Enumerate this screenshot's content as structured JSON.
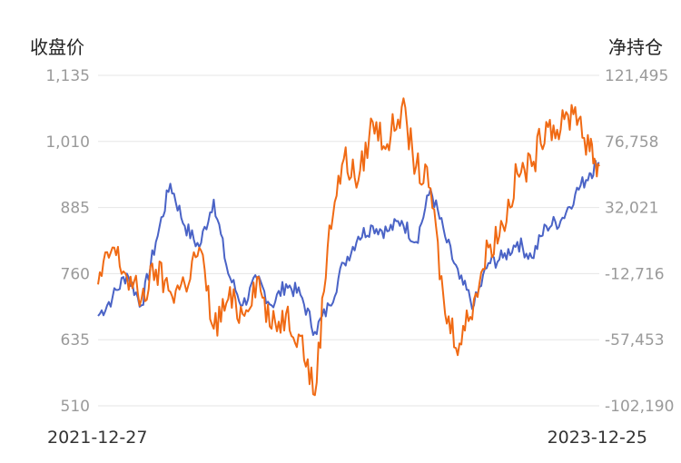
{
  "chart_data": {
    "type": "line",
    "left_axis_title": "收盘价",
    "right_axis_title": "净持仓",
    "x_start": "2021-12-27",
    "x_end": "2023-12-25",
    "left_ticks": [
      "1,135",
      "1,010",
      "885",
      "760",
      "635",
      "510"
    ],
    "right_ticks": [
      "121,495",
      "76,758",
      "32,021",
      "-12,716",
      "-57,453",
      "-102,190"
    ],
    "ylim_left": [
      510,
      1135
    ],
    "ylim_right": [
      -102190,
      121495
    ],
    "grid": true,
    "series": [
      {
        "color": "#4a63c6",
        "axis": "left",
        "x": [
          "2021-12-27",
          "2022-01-17",
          "2022-02-07",
          "2022-02-28",
          "2022-03-21",
          "2022-04-11",
          "2022-05-02",
          "2022-05-23",
          "2022-06-13",
          "2022-07-04",
          "2022-07-25",
          "2022-08-15",
          "2022-09-05",
          "2022-09-26",
          "2022-10-17",
          "2022-11-07",
          "2022-11-28",
          "2022-12-19",
          "2023-01-09",
          "2023-01-30",
          "2023-02-20",
          "2023-03-13",
          "2023-04-03",
          "2023-04-24",
          "2023-05-15",
          "2023-06-05",
          "2023-06-26",
          "2023-07-17",
          "2023-08-07",
          "2023-08-28",
          "2023-09-18",
          "2023-10-09",
          "2023-10-30",
          "2023-11-20",
          "2023-12-11",
          "2023-12-25"
        ],
        "values": [
          680,
          715,
          760,
          700,
          820,
          930,
          850,
          810,
          900,
          760,
          700,
          750,
          700,
          740,
          720,
          650,
          700,
          780,
          830,
          850,
          840,
          860,
          820,
          920,
          830,
          750,
          700,
          780,
          790,
          820,
          790,
          850,
          860,
          910,
          950,
          970
        ]
      },
      {
        "color": "#f06a14",
        "axis": "right",
        "x": [
          "2021-12-27",
          "2022-01-17",
          "2022-02-07",
          "2022-02-28",
          "2022-03-21",
          "2022-04-11",
          "2022-05-02",
          "2022-05-23",
          "2022-06-13",
          "2022-07-04",
          "2022-07-25",
          "2022-08-15",
          "2022-09-05",
          "2022-09-26",
          "2022-10-17",
          "2022-11-07",
          "2022-11-28",
          "2022-12-19",
          "2023-01-09",
          "2023-01-30",
          "2023-02-20",
          "2023-03-13",
          "2023-04-03",
          "2023-04-24",
          "2023-05-15",
          "2023-06-05",
          "2023-06-26",
          "2023-07-17",
          "2023-08-07",
          "2023-08-28",
          "2023-09-18",
          "2023-10-09",
          "2023-10-30",
          "2023-11-20",
          "2023-12-11",
          "2023-12-25"
        ],
        "values": [
          -20000,
          5000,
          -15000,
          -30000,
          -10000,
          -25000,
          -20000,
          5000,
          -50000,
          -30000,
          -40000,
          -15000,
          -50000,
          -40000,
          -55000,
          -95000,
          20000,
          65000,
          50000,
          90000,
          75000,
          100000,
          60000,
          45000,
          -40000,
          -60000,
          -30000,
          5000,
          20000,
          55000,
          60000,
          90000,
          85000,
          100000,
          70000,
          60000
        ]
      }
    ]
  }
}
